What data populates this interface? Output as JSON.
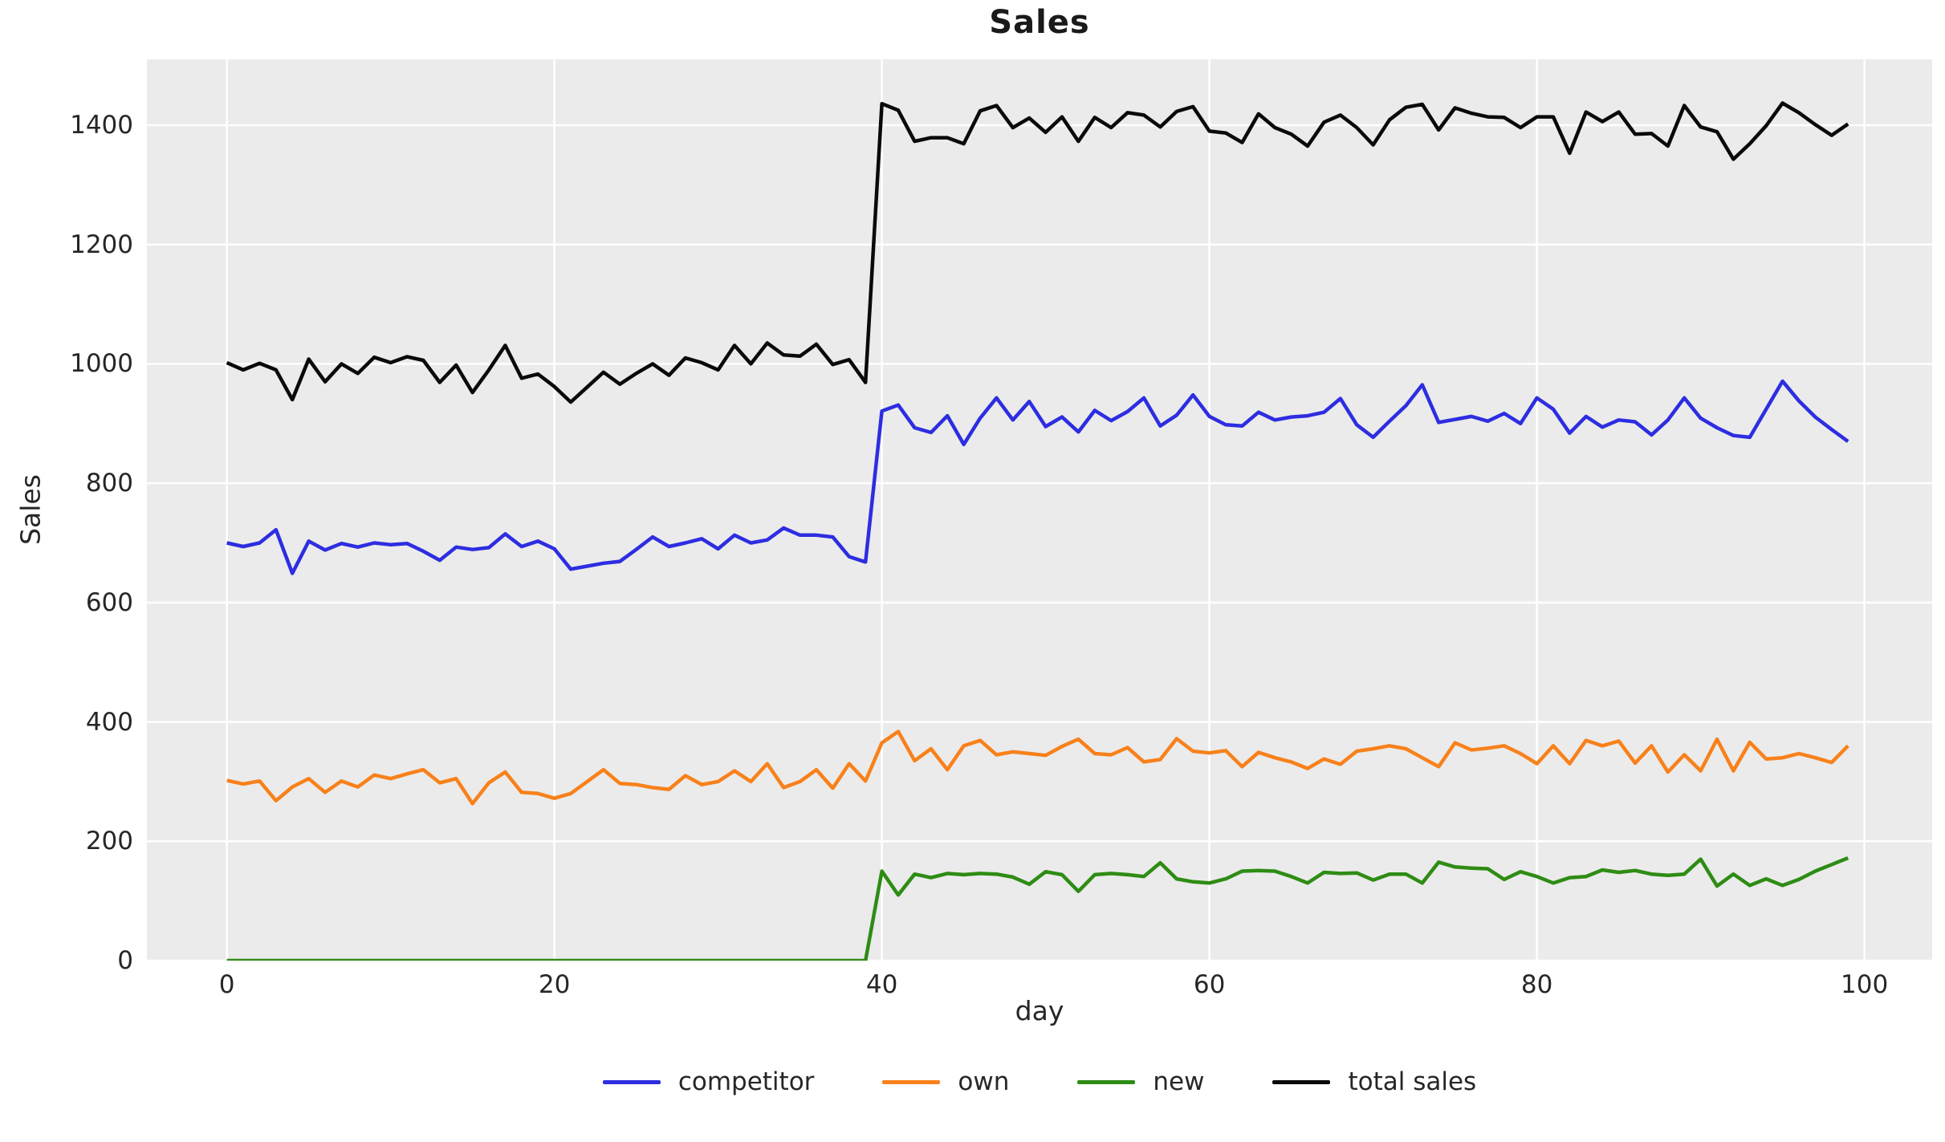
{
  "title": "Sales",
  "x_axis": {
    "label": "day",
    "ticks": [
      0,
      20,
      40,
      60,
      80,
      100
    ]
  },
  "y_axis": {
    "label": "Sales",
    "ticks": [
      0,
      200,
      400,
      600,
      800,
      1000,
      1200,
      1400
    ]
  },
  "colors": {
    "plot_background": "#ebebeb",
    "gridline": "#ffffff",
    "text": "#262626",
    "competitor": "#2d2de1",
    "own": "#f8811b",
    "new": "#2e8c14",
    "total_sales": "#0a0a0a"
  },
  "chart_data": {
    "type": "line",
    "title": "Sales",
    "xlabel": "day",
    "ylabel": "Sales",
    "x": {
      "start": 0,
      "step": 1,
      "count": 100
    },
    "xlim": [
      -4.9,
      104.1
    ],
    "ylim": [
      0,
      1510
    ],
    "grid": true,
    "legend_position": "bottom-center",
    "step_change_at_day": 40,
    "series": [
      {
        "name": "competitor",
        "color": "#2d2de1",
        "values": [
          700,
          694,
          700,
          722,
          649,
          703,
          688,
          699,
          693,
          700,
          697,
          699,
          686,
          671,
          693,
          689,
          692,
          715,
          694,
          703,
          690,
          656,
          661,
          666,
          669,
          689,
          710,
          694,
          700,
          707,
          690,
          713,
          700,
          705,
          725,
          713,
          713,
          710,
          677,
          668,
          921,
          931,
          893,
          885,
          913,
          865,
          909,
          943,
          906,
          937,
          895,
          911,
          886,
          922,
          905,
          920,
          943,
          896,
          914,
          948,
          912,
          898,
          896,
          919,
          906,
          911,
          913,
          919,
          942,
          898,
          877,
          904,
          930,
          965,
          902,
          907,
          912,
          904,
          917,
          900,
          943,
          924,
          884,
          912,
          894,
          906,
          903,
          881,
          906,
          943,
          909,
          893,
          880,
          877,
          924,
          971,
          938,
          911,
          890,
          870
        ]
      },
      {
        "name": "own",
        "color": "#f8811b",
        "values": [
          302,
          296,
          301,
          268,
          291,
          305,
          282,
          301,
          291,
          311,
          305,
          313,
          320,
          298,
          305,
          263,
          298,
          316,
          282,
          280,
          272,
          280,
          300,
          320,
          297,
          295,
          290,
          287,
          310,
          295,
          300,
          318,
          300,
          330,
          290,
          300,
          320,
          289,
          330,
          301,
          365,
          384,
          335,
          355,
          320,
          360,
          369,
          345,
          350,
          347,
          344,
          359,
          371,
          347,
          345,
          357,
          333,
          337,
          372,
          351,
          348,
          352,
          325,
          349,
          340,
          333,
          322,
          338,
          329,
          351,
          355,
          360,
          355,
          340,
          325,
          365,
          353,
          356,
          360,
          347,
          330,
          360,
          330,
          369,
          360,
          368,
          331,
          360,
          316,
          345,
          318,
          371,
          318,
          366,
          338,
          340,
          347,
          340,
          332,
          360
        ]
      },
      {
        "name": "new",
        "color": "#2e8c14",
        "values": [
          0,
          0,
          0,
          0,
          0,
          0,
          0,
          0,
          0,
          0,
          0,
          0,
          0,
          0,
          0,
          0,
          0,
          0,
          0,
          0,
          0,
          0,
          0,
          0,
          0,
          0,
          0,
          0,
          0,
          0,
          0,
          0,
          0,
          0,
          0,
          0,
          0,
          0,
          0,
          0,
          150,
          110,
          145,
          139,
          146,
          144,
          146,
          145,
          140,
          128,
          149,
          144,
          116,
          144,
          146,
          144,
          141,
          164,
          137,
          132,
          130,
          137,
          150,
          151,
          150,
          141,
          130,
          148,
          146,
          147,
          135,
          145,
          145,
          130,
          165,
          157,
          155,
          154,
          136,
          149,
          141,
          130,
          139,
          141,
          152,
          148,
          151,
          145,
          143,
          145,
          170,
          125,
          145,
          126,
          137,
          126,
          136,
          150,
          161,
          172
        ]
      },
      {
        "name": "total sales",
        "color": "#0a0a0a",
        "values": [
          1002,
          990,
          1001,
          990,
          940,
          1008,
          970,
          1000,
          984,
          1011,
          1002,
          1012,
          1006,
          969,
          998,
          952,
          990,
          1031,
          976,
          983,
          962,
          936,
          961,
          986,
          966,
          984,
          1000,
          981,
          1010,
          1002,
          990,
          1031,
          1000,
          1035,
          1015,
          1013,
          1033,
          999,
          1007,
          969,
          1436,
          1425,
          1373,
          1379,
          1379,
          1369,
          1424,
          1433,
          1396,
          1412,
          1388,
          1414,
          1373,
          1413,
          1396,
          1421,
          1417,
          1397,
          1423,
          1431,
          1390,
          1387,
          1371,
          1419,
          1396,
          1385,
          1365,
          1405,
          1417,
          1396,
          1367,
          1409,
          1430,
          1435,
          1392,
          1429,
          1420,
          1414,
          1413,
          1396,
          1414,
          1414,
          1353,
          1422,
          1406,
          1422,
          1385,
          1386,
          1365,
          1433,
          1397,
          1389,
          1343,
          1369,
          1399,
          1437,
          1421,
          1401,
          1383,
          1402
        ]
      }
    ]
  }
}
